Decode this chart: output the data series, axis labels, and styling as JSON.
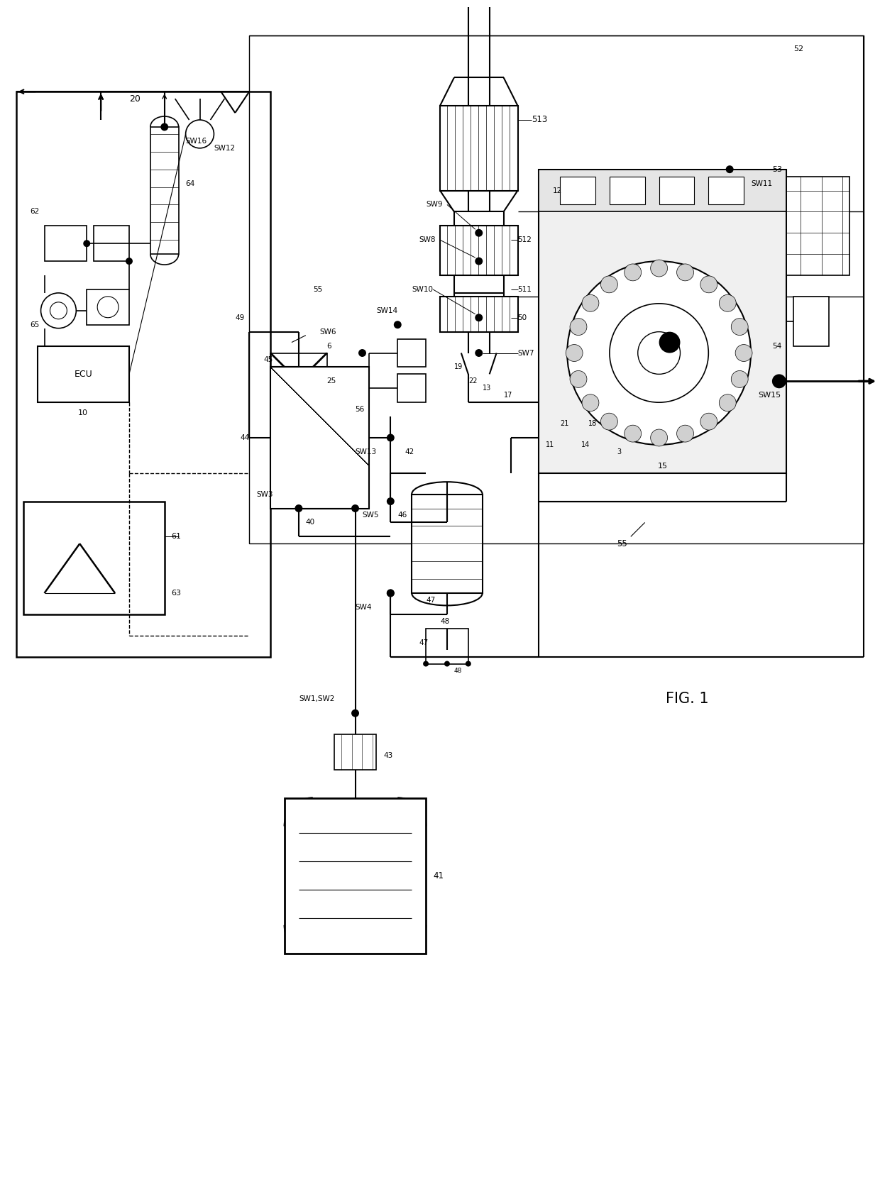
{
  "fig_width": 12.4,
  "fig_height": 16.66,
  "dpi": 100,
  "bg": "#ffffff",
  "title": "FIG. 1",
  "lw_thin": 0.7,
  "lw_med": 1.2,
  "lw_thick": 1.8,
  "lw_vthick": 2.5,
  "labels": {
    "ecu": "ECU",
    "n10": "10",
    "n11": "11",
    "n12": "12",
    "n13": "13",
    "n14": "14",
    "n15": "15",
    "n17": "17",
    "n18": "18",
    "n19": "19",
    "n20": "20",
    "n21": "21",
    "n22": "22",
    "n25": "25",
    "n3": "3",
    "n40": "40",
    "n41": "41",
    "n42": "42",
    "n43": "43",
    "n44": "44",
    "n45": "45",
    "n46": "46",
    "n47": "47",
    "n48": "48",
    "n49": "49",
    "n50": "50",
    "n52": "52",
    "n53": "53",
    "n54": "54",
    "n55": "55",
    "n56": "56",
    "n6": "6",
    "n61": "61",
    "n62": "62",
    "n63": "63",
    "n64": "64",
    "n65": "65",
    "n511": "511",
    "n512": "512",
    "n513": "513",
    "sw1sw2": "SW1,SW2",
    "sw3": "SW3",
    "sw4": "SW4",
    "sw5": "SW5",
    "sw6": "SW6",
    "sw7": "SW7",
    "sw8": "SW8",
    "sw9": "SW9",
    "sw10": "SW10",
    "sw11": "SW11",
    "sw12": "SW12",
    "sw13": "SW13",
    "sw14": "SW14",
    "sw15": "SW15",
    "sw16": "SW16"
  }
}
